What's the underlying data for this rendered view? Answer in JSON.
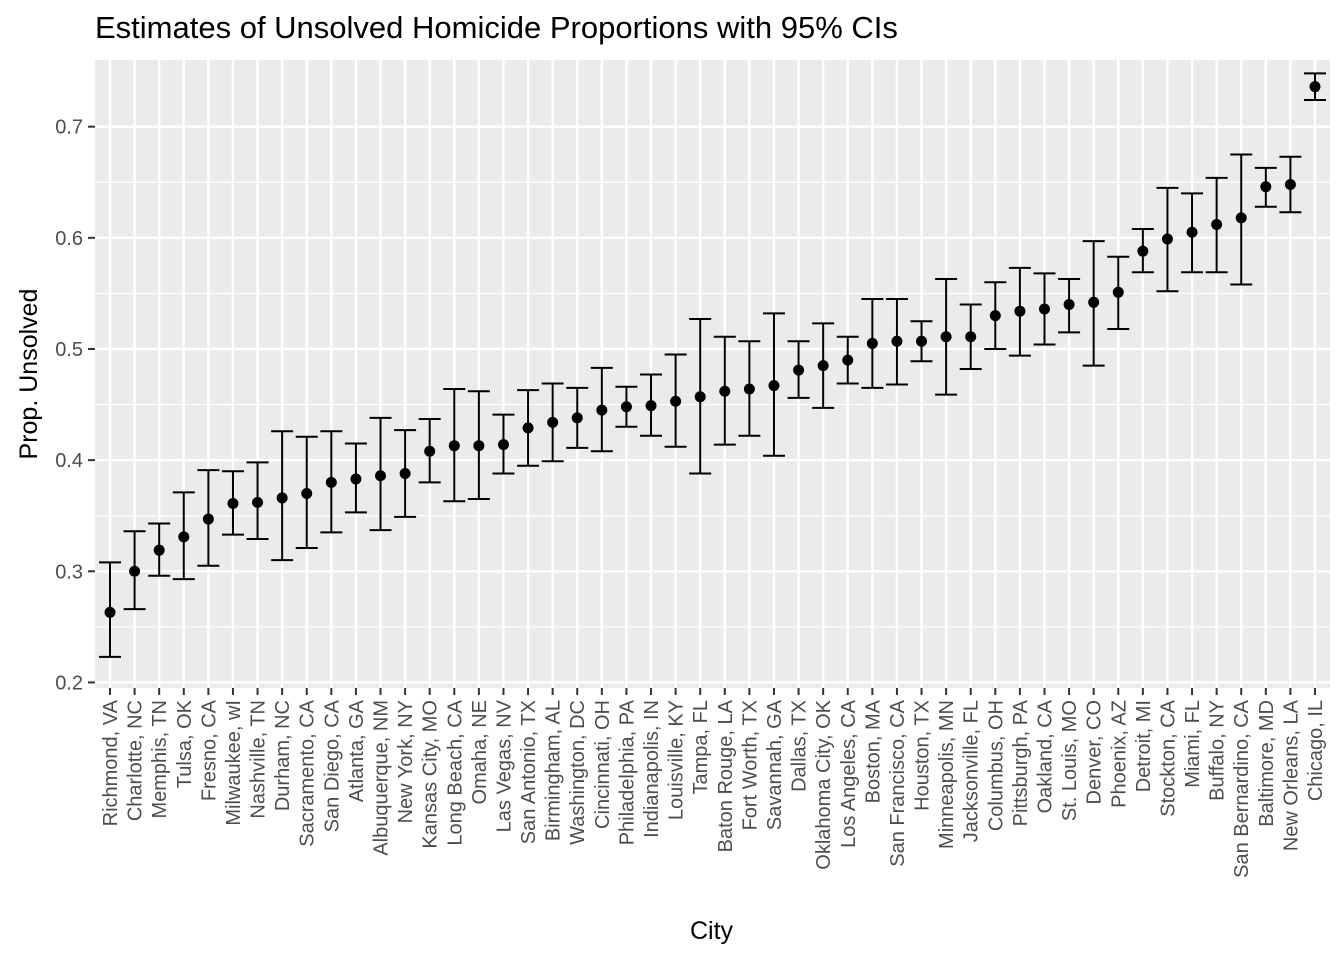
{
  "chart_data": {
    "type": "errorbar",
    "title": "Estimates of Unsolved Homicide Proportions with 95% CIs",
    "xlabel": "City",
    "ylabel": "Prop. Unsolved",
    "ylim": [
      0.195,
      0.76
    ],
    "yticks": [
      0.2,
      0.3,
      0.4,
      0.5,
      0.6,
      0.7
    ],
    "ytick_labels": [
      "0.2",
      "0.3",
      "0.4",
      "0.5",
      "0.6",
      "0.7"
    ],
    "grid": true,
    "legend": "none",
    "colors": {
      "panel": "#ebebeb",
      "grid_major": "#ffffff",
      "points": "#000000",
      "text": "#4d4d4d"
    },
    "categories": [
      "Richmond, VA",
      "Charlotte, NC",
      "Memphis, TN",
      "Tulsa, OK",
      "Fresno, CA",
      "Milwaukee, wI",
      "Nashville, TN",
      "Durham, NC",
      "Sacramento, CA",
      "San Diego, CA",
      "Atlanta, GA",
      "Albuquerque, NM",
      "New York, NY",
      "Kansas City, MO",
      "Long Beach, CA",
      "Omaha, NE",
      "Las Vegas, NV",
      "San Antonio, TX",
      "Birmingham, AL",
      "Washington, DC",
      "Cincinnati, OH",
      "Philadelphia, PA",
      "Indianapolis, IN",
      "Louisville, KY",
      "Tampa, FL",
      "Baton Rouge, LA",
      "Fort Worth, TX",
      "Savannah, GA",
      "Dallas, TX",
      "Oklahoma City, OK",
      "Los Angeles, CA",
      "Boston, MA",
      "San Francisco, CA",
      "Houston, TX",
      "Minneapolis, MN",
      "Jacksonville, FL",
      "Columbus, OH",
      "Pittsburgh, PA",
      "Oakland, CA",
      "St. Louis, MO",
      "Denver, CO",
      "Phoenix, AZ",
      "Detroit, MI",
      "Stockton, CA",
      "Miami, FL",
      "Buffalo, NY",
      "San Bernardino, CA",
      "Baltimore, MD",
      "New Orleans, LA",
      "Chicago, IL"
    ],
    "estimate": [
      0.263,
      0.3,
      0.319,
      0.331,
      0.347,
      0.361,
      0.362,
      0.366,
      0.37,
      0.38,
      0.383,
      0.386,
      0.388,
      0.408,
      0.413,
      0.413,
      0.414,
      0.429,
      0.434,
      0.438,
      0.445,
      0.448,
      0.449,
      0.453,
      0.457,
      0.462,
      0.464,
      0.467,
      0.481,
      0.485,
      0.49,
      0.505,
      0.507,
      0.507,
      0.511,
      0.511,
      0.53,
      0.534,
      0.536,
      0.54,
      0.542,
      0.551,
      0.588,
      0.599,
      0.605,
      0.612,
      0.618,
      0.646,
      0.648,
      0.736
    ],
    "ci_low": [
      0.223,
      0.266,
      0.296,
      0.293,
      0.305,
      0.333,
      0.329,
      0.31,
      0.321,
      0.335,
      0.353,
      0.337,
      0.349,
      0.38,
      0.363,
      0.365,
      0.388,
      0.395,
      0.399,
      0.411,
      0.408,
      0.43,
      0.422,
      0.412,
      0.388,
      0.414,
      0.422,
      0.404,
      0.456,
      0.447,
      0.469,
      0.465,
      0.468,
      0.489,
      0.459,
      0.482,
      0.5,
      0.494,
      0.504,
      0.515,
      0.485,
      0.518,
      0.569,
      0.552,
      0.569,
      0.569,
      0.558,
      0.628,
      0.623,
      0.724
    ],
    "ci_high": [
      0.308,
      0.336,
      0.343,
      0.371,
      0.391,
      0.39,
      0.398,
      0.426,
      0.421,
      0.426,
      0.415,
      0.438,
      0.427,
      0.437,
      0.464,
      0.462,
      0.441,
      0.463,
      0.469,
      0.465,
      0.483,
      0.466,
      0.477,
      0.495,
      0.527,
      0.511,
      0.507,
      0.532,
      0.507,
      0.523,
      0.511,
      0.545,
      0.545,
      0.525,
      0.563,
      0.54,
      0.56,
      0.573,
      0.568,
      0.563,
      0.597,
      0.583,
      0.608,
      0.645,
      0.64,
      0.654,
      0.675,
      0.663,
      0.673,
      0.748
    ]
  }
}
